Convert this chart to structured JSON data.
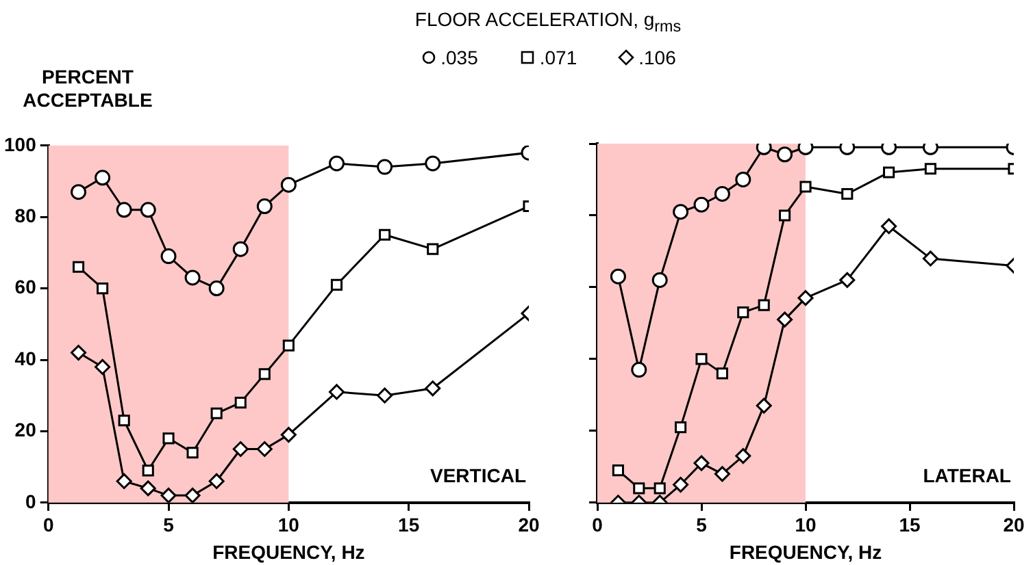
{
  "chart_data": [
    {
      "type": "line",
      "xlabel": "FREQUENCY, Hz",
      "ylabel": "PERCENT ACCEPTABLE",
      "legend_title": "FLOOR ACCELERATION, g$_{rms}$",
      "legend": "top",
      "line_style": "solid",
      "tick_labels": "xy",
      "x": [
        1.25,
        2.25,
        3.15,
        4.15,
        5,
        6,
        7,
        8,
        9,
        10,
        12,
        14,
        16,
        20
      ],
      "xlim": [
        0,
        20
      ],
      "xticks": [
        0,
        5,
        10,
        15,
        20
      ],
      "ylim": [
        0,
        100
      ],
      "yticks": [
        0,
        20,
        40,
        60,
        80,
        100
      ],
      "grid": false,
      "bands": [
        {
          "axis": "x",
          "from": 0,
          "to": 10,
          "color": "#ffc8c8"
        }
      ],
      "annotations": [
        "VERTICAL"
      ],
      "series": [
        {
          "name": ".035",
          "color": "#000000",
          "marker": "circle",
          "values": [
            87,
            91,
            82,
            82,
            69,
            63,
            60,
            71,
            83,
            89,
            95,
            94,
            95,
            98
          ]
        },
        {
          "name": ".071",
          "color": "#000000",
          "marker": "square",
          "values": [
            66,
            60,
            23,
            9,
            18,
            14,
            25,
            28,
            36,
            44,
            61,
            75,
            71,
            83
          ]
        },
        {
          "name": ".106",
          "color": "#000000",
          "marker": "diamond",
          "values": [
            42,
            38,
            6,
            4,
            2,
            2,
            6,
            15,
            15,
            19,
            31,
            30,
            32,
            53
          ]
        }
      ]
    },
    {
      "type": "line",
      "xlabel": "FREQUENCY, Hz",
      "line_style": "solid",
      "tick_labels": "x",
      "x": [
        1,
        2,
        3,
        4,
        5,
        6,
        7,
        8,
        9,
        10,
        12,
        14,
        16,
        20
      ],
      "xlim": [
        0,
        20
      ],
      "xticks": [
        0,
        5,
        10,
        15,
        20
      ],
      "ylim": [
        0,
        100
      ],
      "yticks": [
        0,
        20,
        40,
        60,
        80,
        100
      ],
      "grid": false,
      "bands": [
        {
          "axis": "x",
          "from": 0,
          "to": 10,
          "color": "#ffc8c8"
        }
      ],
      "annotations": [
        "LATERAL"
      ],
      "series": [
        {
          "color": "#000000",
          "marker": "circle",
          "values": [
            63,
            37,
            62,
            81,
            83,
            86,
            90,
            99,
            97,
            99,
            99,
            99,
            99,
            99
          ]
        },
        {
          "color": "#000000",
          "marker": "square",
          "values": [
            9,
            4,
            4,
            21,
            40,
            36,
            53,
            55,
            80,
            88,
            86,
            92,
            93,
            93
          ]
        },
        {
          "color": "#000000",
          "marker": "diamond",
          "values": [
            0,
            0,
            0,
            5,
            11,
            8,
            13,
            27,
            51,
            57,
            62,
            77,
            68,
            66
          ]
        }
      ]
    }
  ]
}
